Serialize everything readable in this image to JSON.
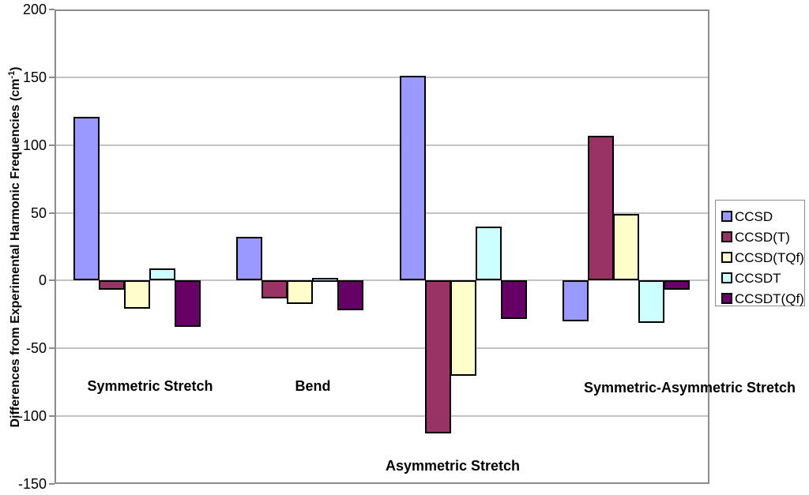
{
  "chart_data": {
    "type": "bar",
    "title": "",
    "xlabel": "",
    "ylabel": "Differences from Experimental Harmonic Frequencies (cm-1)",
    "ylabel_parts": {
      "main": "Differences from Experimental Harmonic Frequencies (cm",
      "sup": "-1",
      "close": ")"
    },
    "ylim": [
      -150,
      200
    ],
    "ytick_step": 50,
    "yticks": [
      200,
      150,
      100,
      50,
      0,
      -50,
      -100,
      -150
    ],
    "grid": true,
    "legend_position": "right",
    "categories": [
      "Symmetric Stretch",
      "Bend",
      "Asymmetric Stretch",
      "Symmetric-Asymmetric Stretch"
    ],
    "series": [
      {
        "name": "CCSD",
        "color": "#9999FF",
        "values": [
          121,
          32,
          151,
          -30
        ]
      },
      {
        "name": "CCSD(T)",
        "color": "#993366",
        "values": [
          -7,
          -13,
          -113,
          107
        ]
      },
      {
        "name": "CCSD(TQf)",
        "color": "#FFFFCC",
        "values": [
          -21,
          -17,
          -70,
          49
        ]
      },
      {
        "name": "CCSDT",
        "color": "#CCFFFF",
        "values": [
          9,
          2,
          40,
          -31
        ]
      },
      {
        "name": "CCSDT(Qf)",
        "color": "#660066",
        "values": [
          -34,
          -22,
          -28,
          -7
        ]
      }
    ],
    "colors": {
      "gridline": "#C3C3C3",
      "plot_border": "#8C8C8C",
      "bar_border": "#000000",
      "background": "#FFFFFF"
    }
  }
}
